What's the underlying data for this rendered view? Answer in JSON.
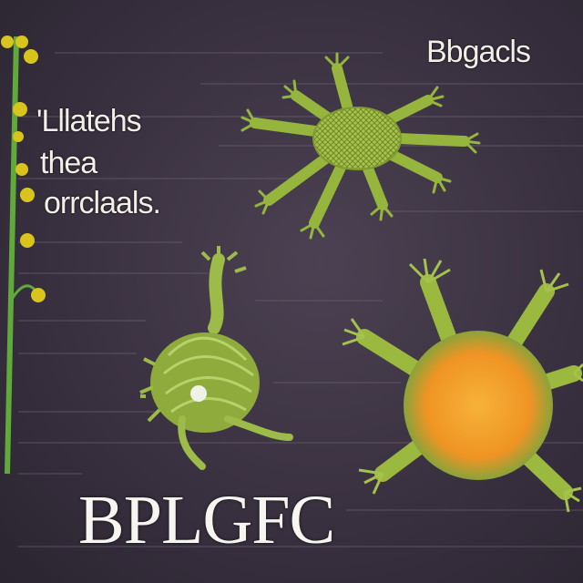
{
  "labels": {
    "top_right": "Bbgacls",
    "left_line1": "'Lllatehs",
    "left_line2": "thea",
    "left_line3": "orrclaals.",
    "bottom": "BPLGFC"
  },
  "colors": {
    "background": "#3a3140",
    "organism_green": "#8fae3a",
    "organism_orange": "#f4a12a",
    "stem_green": "#6fb03a",
    "bud_yellow": "#d9c41e"
  }
}
